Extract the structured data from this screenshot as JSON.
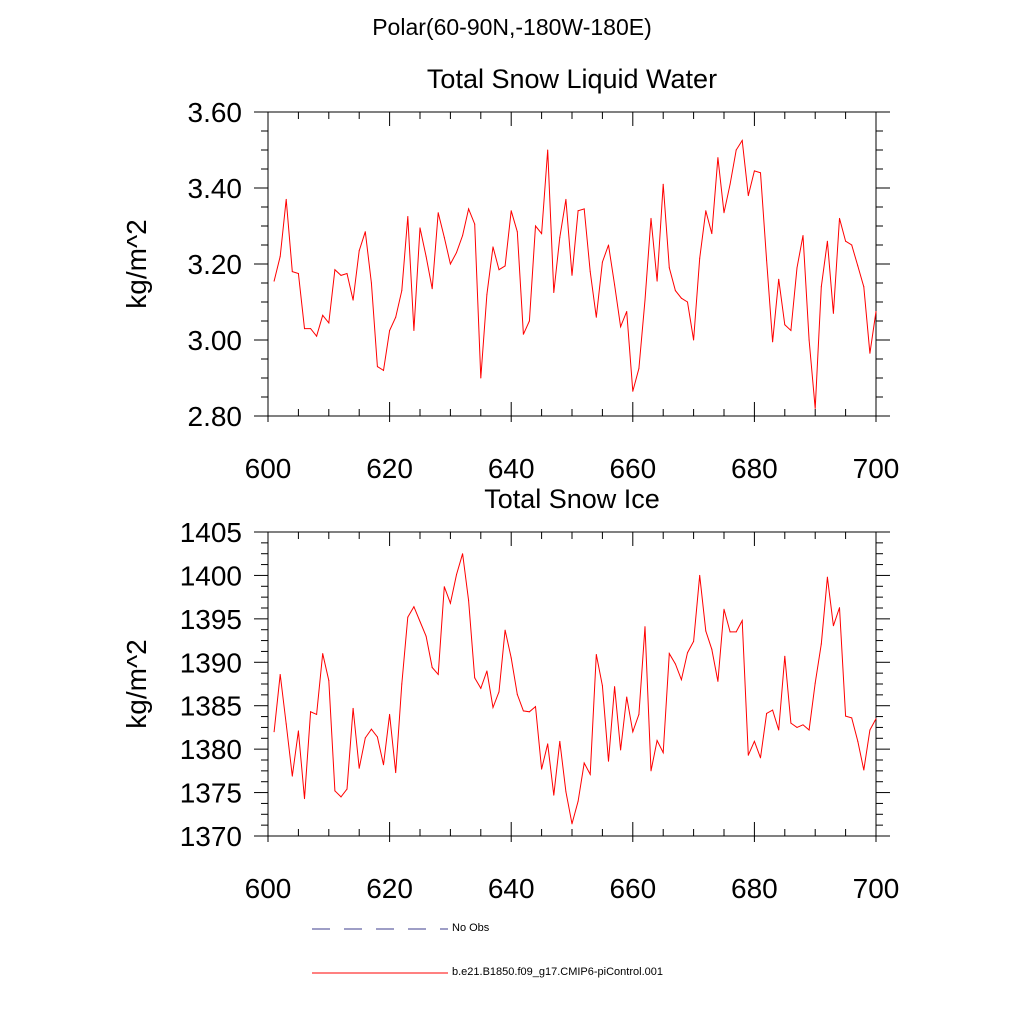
{
  "header": {
    "title": "Polar(60-90N,-180W-180E)"
  },
  "colors": {
    "series": "#ff0000",
    "axis": "#000000",
    "obs": "#3c3c8c"
  },
  "legend": {
    "obs_label": "No Obs",
    "model_label": "b.e21.B1850.f09_g17.CMIP6-piControl.001"
  },
  "chart_data": [
    {
      "type": "line",
      "title": "Total Snow Liquid Water",
      "xlabel": "",
      "ylabel": "kg/m^2",
      "xlim": [
        600,
        700
      ],
      "ylim": [
        2.8,
        3.6
      ],
      "grid": false,
      "x_ticks": [
        600,
        620,
        640,
        660,
        680,
        700
      ],
      "x_tick_labels": [
        "600",
        "620",
        "640",
        "660",
        "680",
        "700"
      ],
      "y_ticks": [
        2.8,
        3.0,
        3.2,
        3.4,
        3.6
      ],
      "y_tick_labels": [
        "2.80",
        "3.00",
        "3.20",
        "3.40",
        "3.60"
      ],
      "series": [
        {
          "name": "b.e21.B1850.f09_g17.CMIP6-piControl.001",
          "x_start": 601,
          "x_step": 1,
          "values": [
            3.155,
            3.22,
            3.37,
            3.18,
            3.175,
            3.03,
            3.03,
            3.01,
            3.065,
            3.045,
            3.185,
            3.17,
            3.175,
            3.105,
            3.235,
            3.285,
            3.15,
            2.93,
            2.92,
            3.025,
            3.06,
            3.13,
            3.325,
            3.025,
            3.295,
            3.22,
            3.135,
            3.335,
            3.27,
            3.2,
            3.23,
            3.275,
            3.345,
            3.305,
            2.9,
            3.12,
            3.245,
            3.185,
            3.195,
            3.34,
            3.285,
            3.015,
            3.05,
            3.3,
            3.28,
            3.5,
            3.125,
            3.27,
            3.37,
            3.17,
            3.34,
            3.345,
            3.18,
            3.06,
            3.205,
            3.25,
            3.145,
            3.035,
            3.075,
            2.865,
            2.925,
            3.105,
            3.32,
            3.155,
            3.41,
            3.19,
            3.13,
            3.11,
            3.1,
            3.0,
            3.215,
            3.34,
            3.28,
            3.48,
            3.335,
            3.41,
            3.5,
            3.525,
            3.38,
            3.445,
            3.44,
            3.21,
            2.995,
            3.16,
            3.04,
            3.025,
            3.19,
            3.275,
            3.0,
            2.82,
            3.14,
            3.26,
            3.07,
            3.32,
            3.26,
            3.25,
            3.195,
            3.14,
            2.965,
            3.075
          ]
        }
      ]
    },
    {
      "type": "line",
      "title": "Total Snow Ice",
      "xlabel": "",
      "ylabel": "kg/m^2",
      "xlim": [
        600,
        700
      ],
      "ylim": [
        1370,
        1405
      ],
      "grid": false,
      "x_ticks": [
        600,
        620,
        640,
        660,
        680,
        700
      ],
      "x_tick_labels": [
        "600",
        "620",
        "640",
        "660",
        "680",
        "700"
      ],
      "y_ticks": [
        1370,
        1375,
        1380,
        1385,
        1390,
        1395,
        1400,
        1405
      ],
      "y_tick_labels": [
        "1370",
        "1375",
        "1380",
        "1385",
        "1390",
        "1395",
        "1400",
        "1405"
      ],
      "series": [
        {
          "name": "b.e21.B1850.f09_g17.CMIP6-piControl.001",
          "x_start": 601,
          "x_step": 1,
          "values": [
            1382.0,
            1388.6,
            1382.9,
            1376.9,
            1382.1,
            1374.3,
            1384.3,
            1384.0,
            1391.0,
            1387.9,
            1375.2,
            1374.5,
            1375.4,
            1384.7,
            1377.8,
            1381.3,
            1382.3,
            1381.4,
            1378.2,
            1384.0,
            1377.3,
            1387.5,
            1395.2,
            1396.4,
            1394.7,
            1393.0,
            1389.4,
            1388.6,
            1398.7,
            1396.8,
            1400.1,
            1402.5,
            1397.1,
            1388.2,
            1387.0,
            1389.0,
            1384.8,
            1386.6,
            1393.7,
            1390.5,
            1386.3,
            1384.4,
            1384.3,
            1384.9,
            1377.7,
            1380.6,
            1374.7,
            1380.9,
            1375.1,
            1371.4,
            1374.0,
            1378.4,
            1377.1,
            1390.9,
            1387.3,
            1378.6,
            1387.2,
            1379.9,
            1386.0,
            1382.0,
            1384.0,
            1394.1,
            1377.5,
            1381.0,
            1379.6,
            1391.0,
            1389.8,
            1388.0,
            1391.1,
            1392.4,
            1400.0,
            1393.6,
            1391.5,
            1387.8,
            1396.1,
            1393.5,
            1393.5,
            1394.8,
            1379.3,
            1380.9,
            1379.0,
            1384.1,
            1384.5,
            1382.2,
            1390.7,
            1383.0,
            1382.5,
            1382.8,
            1382.2,
            1387.6,
            1392.1,
            1399.8,
            1394.2,
            1396.3,
            1383.8,
            1383.6,
            1380.9,
            1377.6,
            1382.2,
            1383.5
          ]
        }
      ]
    }
  ]
}
